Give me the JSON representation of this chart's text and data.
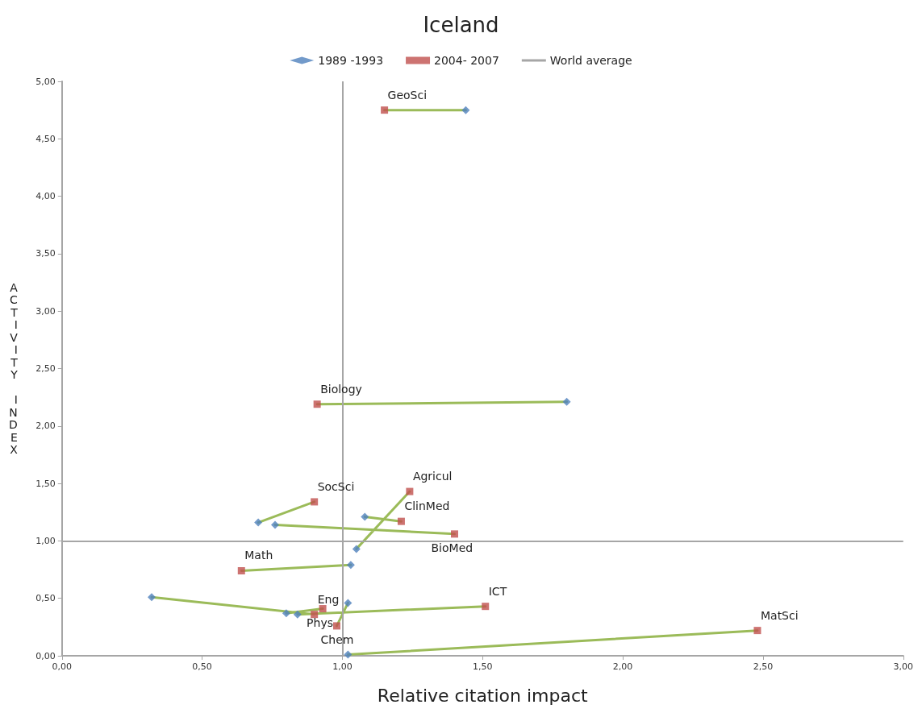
{
  "chart_data": {
    "type": "scatter",
    "title": "Iceland",
    "xlabel": "Relative citation impact",
    "ylabel": "ACTIVITY INDEX",
    "xlim": [
      0,
      3
    ],
    "ylim": [
      0,
      5
    ],
    "xticks": [
      {
        "value": 0,
        "label": "0,00"
      },
      {
        "value": 0.5,
        "label": "0,50"
      },
      {
        "value": 1,
        "label": "1,00"
      },
      {
        "value": 1.5,
        "label": "1,50"
      },
      {
        "value": 2,
        "label": "2,00"
      },
      {
        "value": 2.5,
        "label": "2,50"
      },
      {
        "value": 3,
        "label": "3,00"
      }
    ],
    "yticks": [
      {
        "value": 0,
        "label": "0,00"
      },
      {
        "value": 0.5,
        "label": "0,50"
      },
      {
        "value": 1,
        "label": "1,00"
      },
      {
        "value": 1.5,
        "label": "1,50"
      },
      {
        "value": 2,
        "label": "2,00"
      },
      {
        "value": 2.5,
        "label": "2,50"
      },
      {
        "value": 3,
        "label": "3,00"
      },
      {
        "value": 3.5,
        "label": "3,50"
      },
      {
        "value": 4,
        "label": "4,00"
      },
      {
        "value": 4.5,
        "label": "4,50"
      },
      {
        "value": 5,
        "label": "5,00"
      }
    ],
    "grid": false,
    "legend": "top",
    "series": [
      {
        "type": "line",
        "color": "#9bbb59",
        "marker": "none",
        "x": [
          1.44,
          1.15,
          null,
          1.8,
          0.91,
          null,
          0.7,
          0.9,
          null,
          1.05,
          1.24,
          null,
          1.08,
          1.21,
          null,
          0.76,
          1.4,
          null,
          1.03,
          0.64,
          null,
          0.32,
          0.9,
          null,
          0.8,
          0.93,
          null,
          0.84,
          1.51,
          null,
          1.02,
          0.98,
          null,
          1.02,
          2.48
        ],
        "values": [
          4.75,
          4.75,
          null,
          2.21,
          2.19,
          null,
          1.16,
          1.34,
          null,
          0.93,
          1.43,
          null,
          1.21,
          1.17,
          null,
          1.14,
          1.06,
          null,
          0.79,
          0.74,
          null,
          0.51,
          0.36,
          null,
          0.37,
          0.41,
          null,
          0.36,
          0.43,
          null,
          0.46,
          0.26,
          null,
          0.01,
          0.22
        ]
      },
      {
        "name": "1989 -1993",
        "color": "#4f81bd",
        "marker": "diamond",
        "x": [
          1.44,
          1.8,
          0.7,
          1.05,
          1.08,
          0.76,
          1.03,
          0.32,
          0.8,
          0.84,
          1.02,
          1.02
        ],
        "values": [
          4.75,
          2.21,
          1.16,
          0.93,
          1.21,
          1.14,
          0.79,
          0.51,
          0.37,
          0.36,
          0.46,
          0.01
        ]
      },
      {
        "name": "2004- 2007",
        "color": "#c0504d",
        "marker": "square",
        "x": [
          1.15,
          0.91,
          0.9,
          1.24,
          1.21,
          1.4,
          0.64,
          0.9,
          0.93,
          1.51,
          0.98,
          2.48
        ],
        "values": [
          4.75,
          2.19,
          1.34,
          1.43,
          1.17,
          1.06,
          0.74,
          0.36,
          0.41,
          0.43,
          0.26,
          0.22
        ]
      }
    ],
    "ref_lines": [
      {
        "axis": "y",
        "value": 1,
        "label": "World average",
        "color": "#a6a6a6"
      },
      {
        "axis": "x",
        "value": 1,
        "color": "#a6a6a6"
      }
    ],
    "annotations": [
      {
        "text": "GeoSci",
        "x": 1.15,
        "y": 4.75
      },
      {
        "text": "Biology",
        "x": 0.91,
        "y": 2.19
      },
      {
        "text": "SocSci",
        "x": 0.9,
        "y": 1.34
      },
      {
        "text": "Agricul",
        "x": 1.24,
        "y": 1.43
      },
      {
        "text": "ClinMed",
        "x": 1.21,
        "y": 1.17
      },
      {
        "text": "BioMed",
        "x": 1.4,
        "y": 1.06
      },
      {
        "text": "Math",
        "x": 0.64,
        "y": 0.74
      },
      {
        "text": "Eng",
        "x": 0.9,
        "y": 0.36
      },
      {
        "text": "Phys",
        "x": 0.93,
        "y": 0.41
      },
      {
        "text": "ICT",
        "x": 1.51,
        "y": 0.43
      },
      {
        "text": "Chem",
        "x": 0.98,
        "y": 0.26
      },
      {
        "text": "MatSci",
        "x": 2.48,
        "y": 0.22
      }
    ]
  }
}
